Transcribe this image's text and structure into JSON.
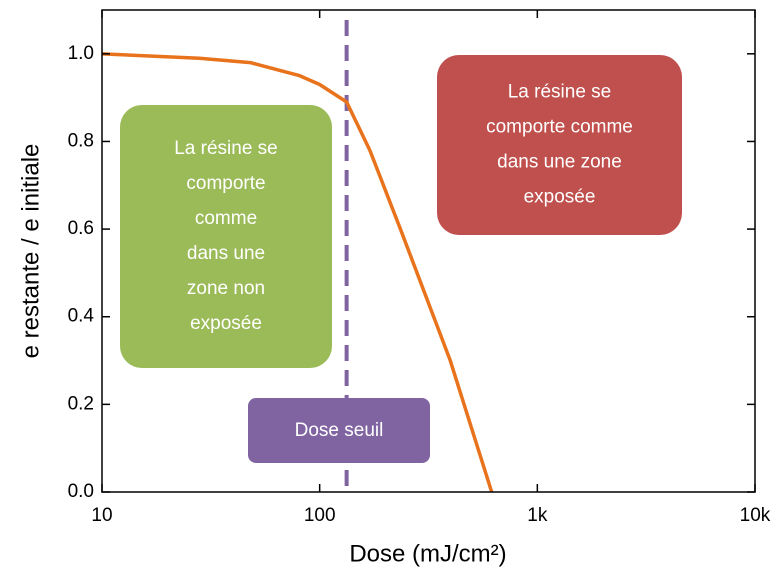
{
  "chart_data": {
    "type": "line",
    "xlabel": "Dose (mJ/cm²)",
    "ylabel": "e restante / e initiale",
    "log_x": true,
    "xlim": [
      10,
      10000
    ],
    "xticks": [
      10,
      100,
      {
        "value": 1000,
        "label": "1k"
      },
      {
        "value": 10000,
        "label": "10k"
      }
    ],
    "ylim": [
      0,
      1.1
    ],
    "yticks": [
      {
        "value": 0,
        "label": "0.0"
      },
      {
        "value": 0.2,
        "label": "0.2"
      },
      {
        "value": 0.4,
        "label": "0.4"
      },
      {
        "value": 0.6,
        "label": "0.6"
      },
      {
        "value": 0.8,
        "label": "0.8"
      },
      {
        "value": 1,
        "label": "1.0"
      }
    ],
    "series": [
      {
        "color": "#e8731c",
        "x": [
          10,
          28,
          48,
          81,
          100,
          133,
          170,
          235,
          398,
          617
        ],
        "values": [
          1.0,
          0.99,
          0.98,
          0.95,
          0.93,
          0.89,
          0.78,
          0.6,
          0.3,
          0.0
        ]
      }
    ],
    "threshold": {
      "x": 133,
      "color": "#8064a2",
      "label": "Dose seuil"
    },
    "annotations": [
      {
        "color": "#9bbb59",
        "lines": [
          "La résine se",
          "comporte",
          "comme",
          "dans une",
          "zone non",
          "exposée"
        ]
      },
      {
        "color": "#c0504d",
        "lines": [
          "La résine se",
          "comporte comme",
          "dans une zone",
          "exposée"
        ]
      }
    ]
  }
}
